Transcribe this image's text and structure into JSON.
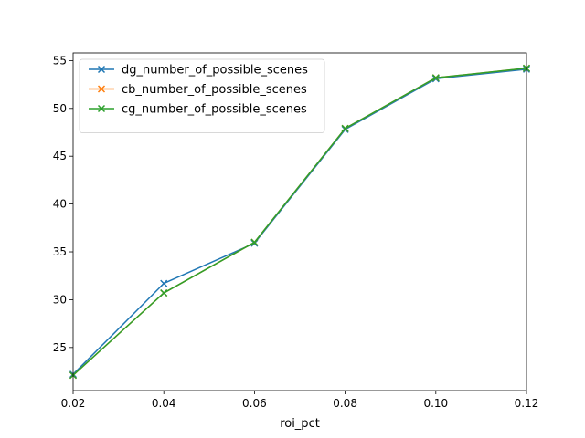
{
  "chart_data": {
    "type": "line",
    "title": "",
    "xlabel": "roi_pct",
    "ylabel": "",
    "x": [
      0.02,
      0.04,
      0.06,
      0.08,
      0.1,
      0.12
    ],
    "xlim": [
      0.02,
      0.12
    ],
    "ylim": [
      20.5,
      55.8
    ],
    "x_ticks": [
      "0.02",
      "0.04",
      "0.06",
      "0.08",
      "0.10",
      "0.12"
    ],
    "x_tick_values": [
      0.02,
      0.04,
      0.06,
      0.08,
      0.1,
      0.12
    ],
    "y_ticks": [
      "25",
      "30",
      "35",
      "40",
      "45",
      "50",
      "55"
    ],
    "y_tick_values": [
      25,
      30,
      35,
      40,
      45,
      50,
      55
    ],
    "grid": false,
    "legend_position": "top-left",
    "marker": "x",
    "series": [
      {
        "name": "dg_number_of_possible_scenes",
        "color": "#1f77b4",
        "values": [
          22.2,
          31.7,
          35.9,
          47.8,
          53.1,
          54.1
        ]
      },
      {
        "name": "cb_number_of_possible_scenes",
        "color": "#ff7f0e",
        "values": [
          22.1,
          30.7,
          36.0,
          47.9,
          53.2,
          54.2
        ]
      },
      {
        "name": "cg_number_of_possible_scenes",
        "color": "#2ca02c",
        "values": [
          22.1,
          30.7,
          36.0,
          47.9,
          53.2,
          54.2
        ]
      }
    ]
  }
}
